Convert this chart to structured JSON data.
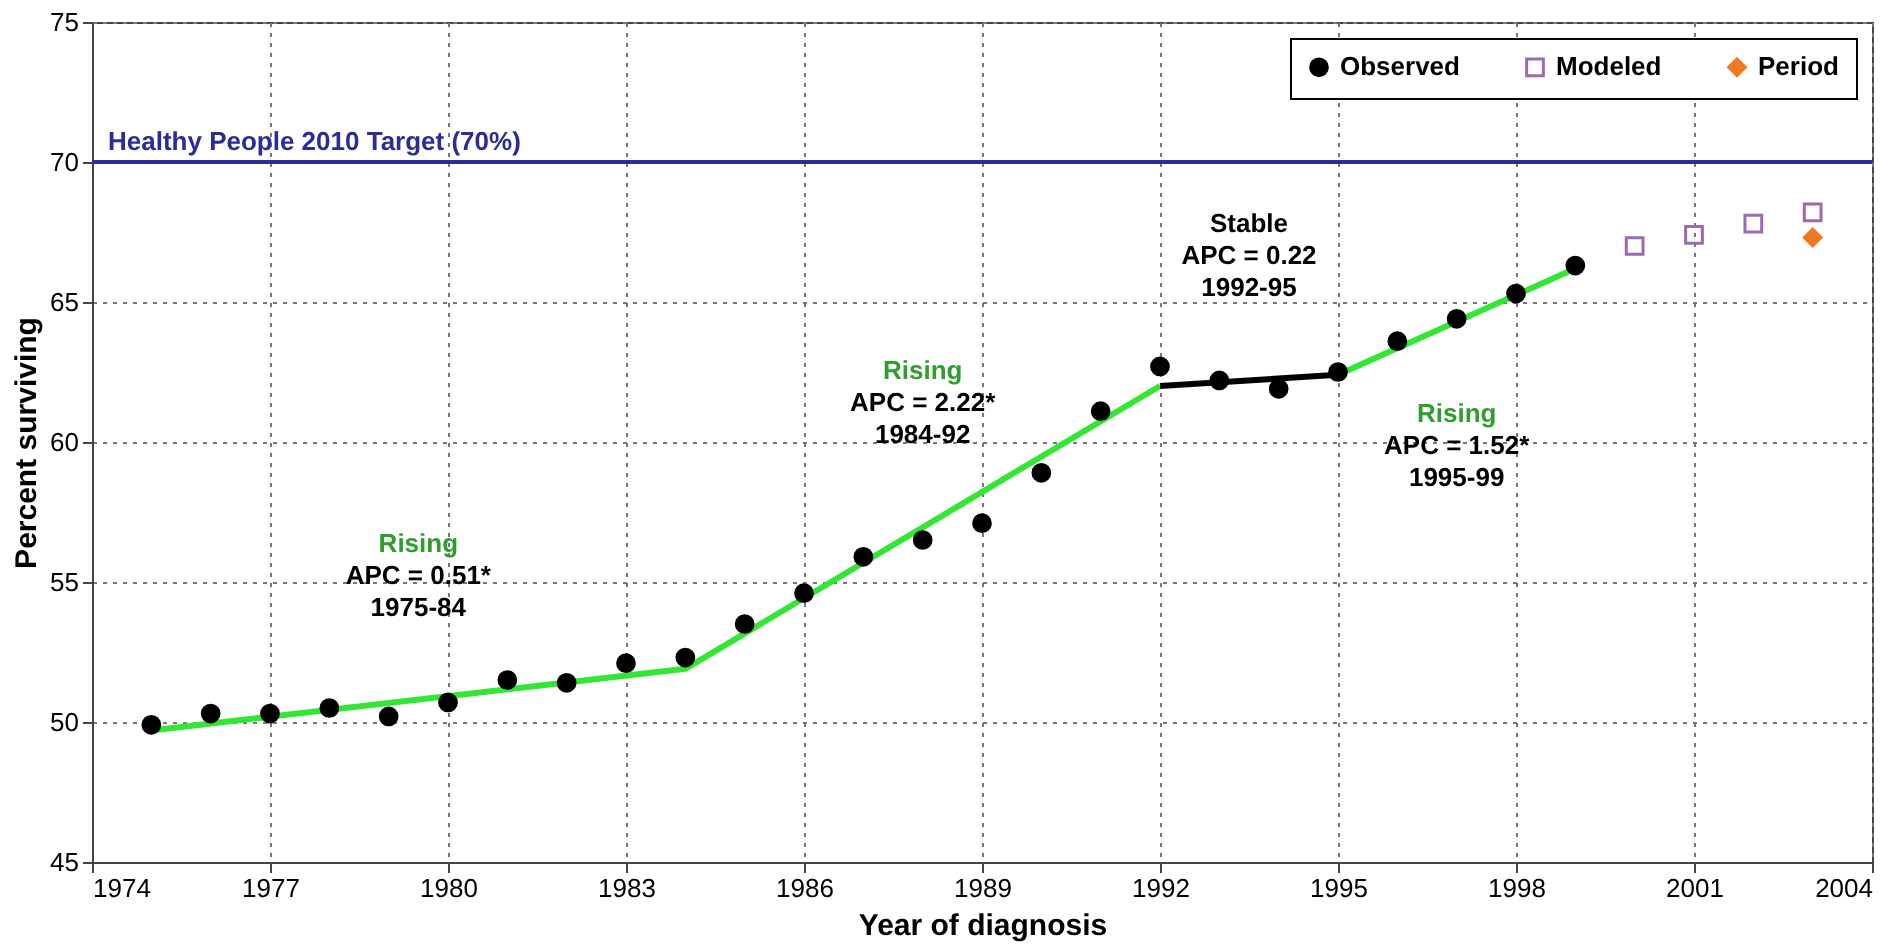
{
  "chart_data": {
    "type": "scatter",
    "xlabel": "Year of diagnosis",
    "ylabel": "Percent surviving",
    "xlim": [
      1974,
      2004
    ],
    "xticks": [
      1974,
      1977,
      1980,
      1983,
      1986,
      1989,
      1992,
      1995,
      1998,
      2001,
      2004
    ],
    "ylim": [
      45,
      75
    ],
    "yticks": [
      45,
      50,
      55,
      60,
      65,
      70,
      75
    ],
    "grid": true,
    "legend": "top right",
    "series": [
      {
        "name": "Observed",
        "marker": "circle",
        "color": "#000000",
        "x": [
          1975,
          1976,
          1977,
          1978,
          1979,
          1980,
          1981,
          1982,
          1983,
          1984,
          1985,
          1986,
          1987,
          1988,
          1989,
          1990,
          1991,
          1992,
          1993,
          1994,
          1995,
          1996,
          1997,
          1998,
          1999
        ],
        "values": [
          49.9,
          50.3,
          50.3,
          50.5,
          50.2,
          50.7,
          51.5,
          51.4,
          52.1,
          52.3,
          53.5,
          54.6,
          55.9,
          56.5,
          57.1,
          58.9,
          61.1,
          62.7,
          62.2,
          61.9,
          62.5,
          63.6,
          64.4,
          65.3,
          66.3
        ]
      },
      {
        "name": "Modeled",
        "marker": "square",
        "color": "#9b6ab0",
        "x": [
          2000,
          2001,
          2002,
          2003
        ],
        "values": [
          67.0,
          67.4,
          67.8,
          68.2
        ]
      },
      {
        "name": "Period",
        "marker": "diamond",
        "color": "#f07820",
        "x": [
          2003
        ],
        "values": [
          67.3
        ]
      },
      {
        "type": "line",
        "color": "#33e633",
        "x": [
          1975,
          1984,
          1992
        ],
        "values": [
          49.7,
          51.9,
          62.0
        ]
      },
      {
        "type": "line",
        "color": "#000000",
        "x": [
          1992,
          1995
        ],
        "values": [
          62.0,
          62.4
        ]
      },
      {
        "type": "line",
        "color": "#33e633",
        "x": [
          1995,
          1999
        ],
        "values": [
          62.4,
          66.2
        ]
      }
    ],
    "ref_lines": [
      {
        "axis": "y",
        "value": 70,
        "label": "Healthy People 2010 Target (70%)",
        "color": "#2b2b9a"
      }
    ],
    "annotations": [
      "Rising\nAPC = 0.51*\n1975-84",
      "Rising\nAPC = 2.22*\n1984-92",
      "Stable\nAPC = 0.22\n1992-95",
      "Rising\nAPC = 1.52*\n1995-99"
    ]
  }
}
